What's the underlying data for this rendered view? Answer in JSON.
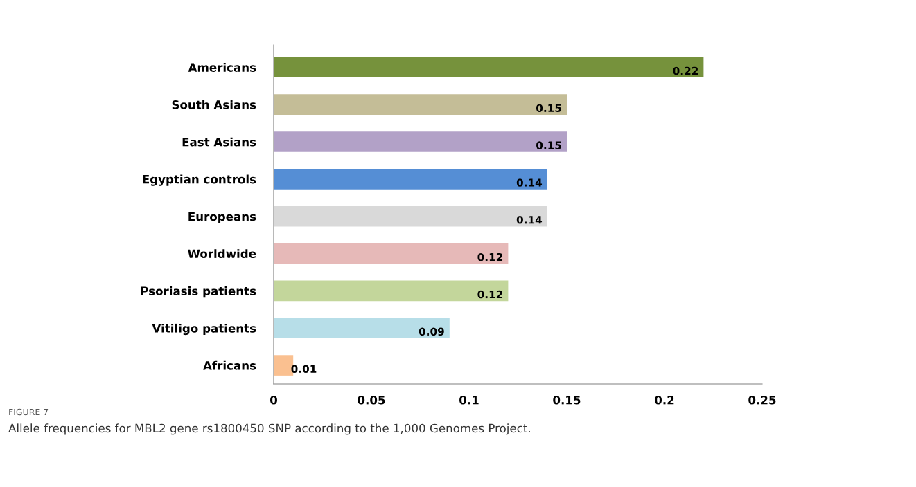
{
  "chart_data": {
    "type": "bar",
    "orientation": "horizontal",
    "categories": [
      "Americans",
      "South Asians",
      "East Asians",
      "Egyptian controls",
      "Europeans",
      "Worldwide",
      "Psoriasis patients",
      "Vitiligo patients",
      "Africans"
    ],
    "values": [
      0.22,
      0.15,
      0.15,
      0.14,
      0.14,
      0.12,
      0.12,
      0.09,
      0.01
    ],
    "colors": [
      "#76923c",
      "#c4bd97",
      "#b2a1c7",
      "#558ed5",
      "#d9d9d9",
      "#e6b9b8",
      "#c3d69b",
      "#b7dee8",
      "#fac090"
    ],
    "xlim": [
      0,
      0.25
    ],
    "xticks": [
      0,
      0.05,
      0.1,
      0.15,
      0.2,
      0.25
    ],
    "data_labels": true,
    "grid": false,
    "legend": false,
    "annotations": [
      "FIGURE 7",
      "Allele frequencies for MBL2 gene rs1800450 SNP according to the 1,000 Genomes Project."
    ]
  }
}
